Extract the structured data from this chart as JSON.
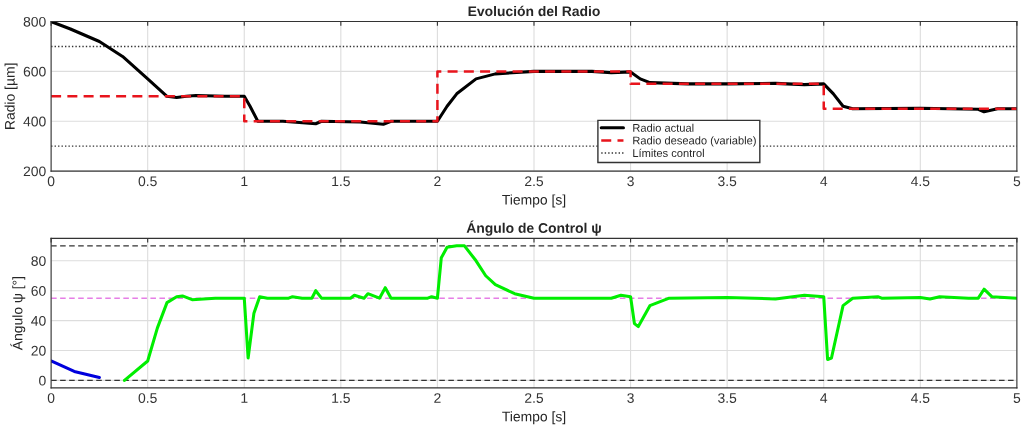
{
  "chart_data": [
    {
      "type": "line",
      "title": "Evolución del Radio",
      "xlabel": "Tiempo [s]",
      "ylabel": "Radio [µm]",
      "xlim": [
        0,
        5
      ],
      "xticks": [
        0,
        0.5,
        1,
        1.5,
        2,
        2.5,
        3,
        3.5,
        4,
        4.5,
        5
      ],
      "ylim": [
        200,
        800
      ],
      "yticks": [
        200,
        400,
        600,
        800
      ],
      "grid": true,
      "legend": "bottom",
      "marker": "none",
      "series": [
        {
          "name": "Radio actual",
          "color": "#000000",
          "line_style": "solid",
          "x": [
            0,
            0.1,
            0.25,
            0.37,
            0.5,
            0.6,
            0.65,
            0.7,
            0.75,
            0.9,
            1.0,
            1.03,
            1.07,
            1.2,
            1.37,
            1.4,
            1.6,
            1.72,
            1.76,
            1.95,
            2.0,
            2.05,
            2.1,
            2.2,
            2.3,
            2.5,
            2.8,
            2.9,
            3.0,
            3.05,
            3.1,
            3.3,
            3.5,
            3.75,
            3.9,
            4.0,
            4.05,
            4.1,
            4.15,
            4.5,
            4.8,
            4.83,
            4.9,
            5.0
          ],
          "values": [
            800,
            770,
            720,
            660,
            570,
            500,
            495,
            500,
            503,
            500,
            500,
            460,
            400,
            400,
            390,
            400,
            397,
            388,
            400,
            400,
            400,
            460,
            510,
            570,
            590,
            600,
            600,
            595,
            598,
            570,
            555,
            550,
            550,
            552,
            547,
            550,
            510,
            460,
            450,
            452,
            448,
            438,
            450,
            450
          ]
        },
        {
          "name": "Radio deseado (variable)",
          "color": "#e8141c",
          "line_style": "dashed",
          "x": [
            0,
            1,
            1,
            2,
            2,
            3,
            3,
            4,
            4,
            5
          ],
          "values": [
            500,
            500,
            400,
            400,
            600,
            600,
            550,
            550,
            450,
            450
          ]
        }
      ],
      "ref_lines": [
        {
          "axis": "y",
          "value": 700,
          "label": "Límites control",
          "color": "#333333",
          "line_style": "dotted"
        },
        {
          "axis": "y",
          "value": 300,
          "color": "#333333",
          "line_style": "dotted"
        }
      ]
    },
    {
      "type": "line",
      "title": "Ángulo de Control ψ",
      "xlabel": "Tiempo [s]",
      "ylabel": "Ángulo ψ [°]",
      "xlim": [
        0,
        5
      ],
      "xticks": [
        0,
        0.5,
        1,
        1.5,
        2,
        2.5,
        3,
        3.5,
        4,
        4.5,
        5
      ],
      "ylim": [
        -5,
        95
      ],
      "yticks": [
        0,
        20,
        40,
        60,
        80
      ],
      "grid": true,
      "marker": "none",
      "series": [
        {
          "color": "#0000dd",
          "line_style": "solid",
          "x": [
            0,
            0.12,
            0.25
          ],
          "values": [
            13,
            6,
            2
          ]
        },
        {
          "color": "#00ee00",
          "line_style": "solid",
          "x": [
            0.38,
            0.5,
            0.55,
            0.6,
            0.65,
            0.68,
            0.73,
            0.85,
            1.0,
            1.02,
            1.05,
            1.08,
            1.12,
            1.23,
            1.25,
            1.3,
            1.35,
            1.37,
            1.4,
            1.55,
            1.57,
            1.62,
            1.64,
            1.7,
            1.73,
            1.76,
            1.95,
            1.97,
            2.0,
            2.02,
            2.05,
            2.1,
            2.14,
            2.2,
            2.25,
            2.3,
            2.4,
            2.5,
            2.9,
            2.95,
            3.0,
            3.02,
            3.04,
            3.1,
            3.2,
            3.5,
            3.75,
            3.9,
            4.0,
            4.02,
            4.04,
            4.1,
            4.15,
            4.28,
            4.3,
            4.5,
            4.55,
            4.6,
            4.75,
            4.8,
            4.83,
            4.87,
            5.0
          ],
          "values": [
            0,
            13,
            35,
            52,
            56,
            56.5,
            54,
            55,
            55,
            15,
            45,
            56,
            55,
            55,
            56,
            55,
            55,
            60,
            55,
            55,
            57,
            55,
            58,
            55,
            62,
            55,
            55,
            56,
            55,
            82,
            89,
            90,
            90,
            80,
            70,
            64,
            58,
            55,
            55,
            57,
            56,
            38,
            36,
            50,
            55,
            55.5,
            54.5,
            57,
            56,
            14,
            15,
            50,
            55,
            56,
            55,
            55.5,
            54.5,
            56,
            55,
            55,
            61,
            56,
            55
          ]
        }
      ],
      "ref_lines": [
        {
          "axis": "y",
          "value": 90,
          "color": "#333333",
          "line_style": "dashed"
        },
        {
          "axis": "y",
          "value": 0,
          "color": "#333333",
          "line_style": "dashed"
        },
        {
          "axis": "y",
          "value": 55,
          "color": "#e67ee6",
          "line_style": "dashed"
        }
      ]
    }
  ]
}
